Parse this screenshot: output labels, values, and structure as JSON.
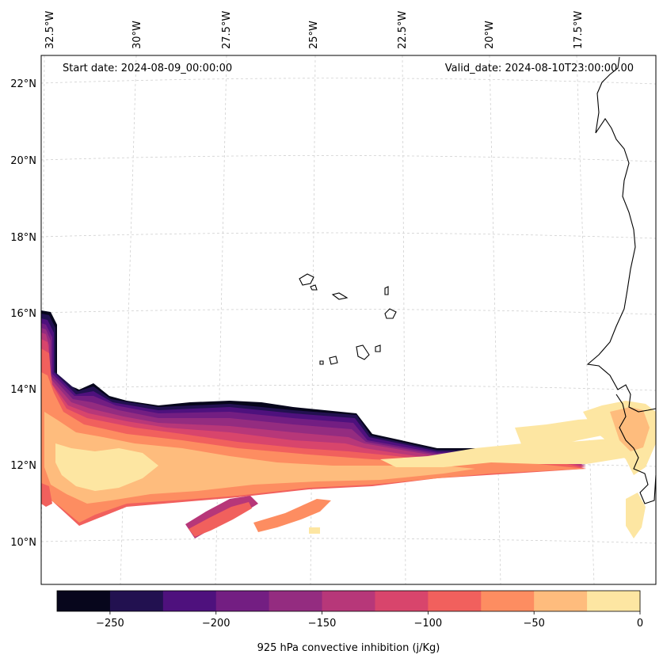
{
  "map": {
    "start_date": "Start date: 2024-08-09_00:00:00",
    "valid_date": "Valid_date: 2024-08-10T23:00:00.00",
    "lon_labels": [
      "32.5°W",
      "30°W",
      "27.5°W",
      "25°W",
      "22.5°W",
      "20°W",
      "17.5°W"
    ],
    "lat_labels": [
      "22°N",
      "20°N",
      "18°N",
      "16°N",
      "14°N",
      "12°N",
      "10°N"
    ],
    "variable": "925 hPa convective inhibition",
    "unit": "j/Kg"
  },
  "colorbar": {
    "label": "925 hPa convective inhibition (j/Kg)",
    "ticks": [
      "−250",
      "−200",
      "−150",
      "−100",
      "−50",
      "0"
    ],
    "tick_values": [
      -250,
      -200,
      -150,
      -100,
      -50,
      0
    ],
    "range": [
      -275,
      0
    ],
    "levels": [
      -275,
      -250,
      -225,
      -200,
      -175,
      -150,
      -125,
      -100,
      -75,
      -50,
      -25,
      0
    ],
    "colors": [
      "#07061c",
      "#221150",
      "#4e117d",
      "#731e82",
      "#942c80",
      "#b73779",
      "#d8456c",
      "#f1605d",
      "#fd8d61",
      "#febc7d",
      "#fde6a2"
    ]
  }
}
